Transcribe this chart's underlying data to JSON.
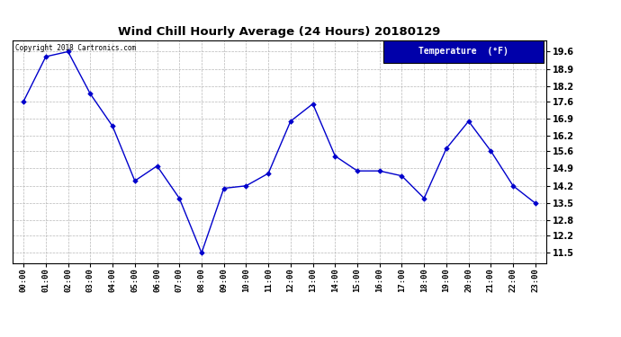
{
  "title": "Wind Chill Hourly Average (24 Hours) 20180129",
  "copyright_text": "Copyright 2018 Cartronics.com",
  "legend_label": "Temperature  (°F)",
  "hours": [
    "00:00",
    "01:00",
    "02:00",
    "03:00",
    "04:00",
    "05:00",
    "06:00",
    "07:00",
    "08:00",
    "09:00",
    "10:00",
    "11:00",
    "12:00",
    "13:00",
    "14:00",
    "15:00",
    "16:00",
    "17:00",
    "18:00",
    "19:00",
    "20:00",
    "21:00",
    "22:00",
    "23:00"
  ],
  "values": [
    17.6,
    19.4,
    19.6,
    17.9,
    16.6,
    14.4,
    15.0,
    13.7,
    11.5,
    14.1,
    14.2,
    14.7,
    16.8,
    17.5,
    15.4,
    14.8,
    14.8,
    14.6,
    13.7,
    15.7,
    16.8,
    15.6,
    14.2,
    13.5
  ],
  "line_color": "#0000cc",
  "marker_color": "#0000cc",
  "bg_color": "#ffffff",
  "plot_bg_color": "#ffffff",
  "grid_color": "#b0b0b0",
  "title_color": "#000000",
  "ytick_values": [
    11.5,
    12.2,
    12.8,
    13.5,
    14.2,
    14.9,
    15.6,
    16.2,
    16.9,
    17.6,
    18.2,
    18.9,
    19.6
  ],
  "ylim_min": 11.1,
  "ylim_max": 20.05,
  "legend_bg": "#0000aa",
  "legend_text_color": "#ffffff"
}
